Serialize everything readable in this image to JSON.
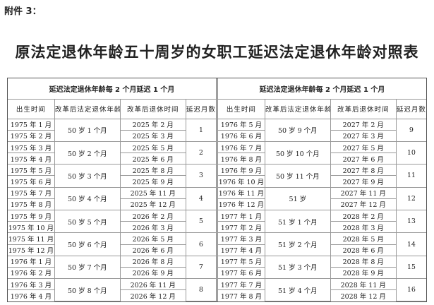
{
  "attachment_label": "附件 3：",
  "title": "原法定退休年龄五十周岁的女职工延迟法定退休年龄对照表",
  "tables": [
    {
      "caption": "延迟法定退休年龄每 2 个月延迟 1 个月",
      "headers": [
        "出生时间",
        "改革后法定退休年龄",
        "改革后退休时间",
        "延迟月数"
      ],
      "groups": [
        {
          "births": [
            "1975 年 1 月",
            "1975 年 2 月"
          ],
          "age": "50 岁 1 个月",
          "retire": [
            "2025 年 2 月",
            "2025 年 3 月"
          ],
          "delay": "1"
        },
        {
          "births": [
            "1975 年 3 月",
            "1975 年 4 月"
          ],
          "age": "50 岁 2 个月",
          "retire": [
            "2025 年 5 月",
            "2025 年 6 月"
          ],
          "delay": "2"
        },
        {
          "births": [
            "1975 年 5 月",
            "1975 年 6 月"
          ],
          "age": "50 岁 3 个月",
          "retire": [
            "2025 年 8 月",
            "2025 年 9 月"
          ],
          "delay": "3"
        },
        {
          "births": [
            "1975 年 7 月",
            "1975 年 8 月"
          ],
          "age": "50 岁 4 个月",
          "retire": [
            "2025 年 11 月",
            "2025 年 12 月"
          ],
          "delay": "4"
        },
        {
          "births": [
            "1975 年 9 月",
            "1975 年 10 月"
          ],
          "age": "50 岁 5 个月",
          "retire": [
            "2026 年 2 月",
            "2026 年 3 月"
          ],
          "delay": "5"
        },
        {
          "births": [
            "1975 年 11 月",
            "1975 年 12 月"
          ],
          "age": "50 岁 6 个月",
          "retire": [
            "2026 年 5 月",
            "2026 年 6 月"
          ],
          "delay": "6"
        },
        {
          "births": [
            "1976 年 1 月",
            "1976 年 2 月"
          ],
          "age": "50 岁 7 个月",
          "retire": [
            "2026 年 8 月",
            "2026 年 9 月"
          ],
          "delay": "7"
        },
        {
          "births": [
            "1976 年 3 月",
            "1976 年 4 月"
          ],
          "age": "50 岁 8 个月",
          "retire": [
            "2026 年 11 月",
            "2026 年 12 月"
          ],
          "delay": "8"
        }
      ]
    },
    {
      "caption": "延迟法定退休年龄每 2 个月延迟 1 个月",
      "headers": [
        "出生时间",
        "改革后法定退休年龄",
        "改革后退休时间",
        "延迟月数"
      ],
      "groups": [
        {
          "births": [
            "1976 年 5 月",
            "1976 年 6 月"
          ],
          "age": "50 岁 9 个月",
          "retire": [
            "2027 年 2 月",
            "2027 年 3 月"
          ],
          "delay": "9"
        },
        {
          "births": [
            "1976 年 7 月",
            "1976 年 8 月"
          ],
          "age": "50 岁 10 个月",
          "retire": [
            "2027 年 5 月",
            "2027 年 6 月"
          ],
          "delay": "10"
        },
        {
          "births": [
            "1976 年 9 月",
            "1976 年 10 月"
          ],
          "age": "50 岁 11 个月",
          "retire": [
            "2027 年 8 月",
            "2027 年 9 月"
          ],
          "delay": "11"
        },
        {
          "births": [
            "1976 年 11 月",
            "1976 年 12 月"
          ],
          "age": "51 岁",
          "retire": [
            "2027 年 11 月",
            "2027 年 12 月"
          ],
          "delay": "12"
        },
        {
          "births": [
            "1977 年 1 月",
            "1977 年 2 月"
          ],
          "age": "51 岁 1 个月",
          "retire": [
            "2028 年 2 月",
            "2028 年 3 月"
          ],
          "delay": "13"
        },
        {
          "births": [
            "1977 年 3 月",
            "1977 年 4 月"
          ],
          "age": "51 岁 2 个月",
          "retire": [
            "2028 年 5 月",
            "2028 年 6 月"
          ],
          "delay": "14"
        },
        {
          "births": [
            "1977 年 5 月",
            "1977 年 6 月"
          ],
          "age": "51 岁 3 个月",
          "retire": [
            "2028 年 8 月",
            "2028 年 9 月"
          ],
          "delay": "15"
        },
        {
          "births": [
            "1977 年 7 月",
            "1977 年 8 月"
          ],
          "age": "51 岁 4 个月",
          "retire": [
            "2028 年 11 月",
            "2028 年 12 月"
          ],
          "delay": "16"
        }
      ]
    }
  ]
}
